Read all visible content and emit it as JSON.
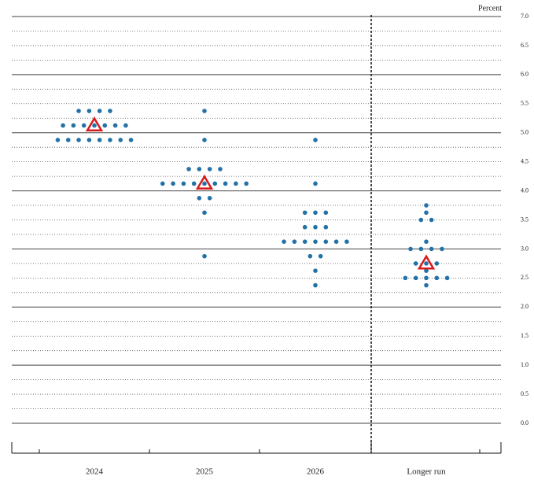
{
  "chart_data": {
    "type": "dot",
    "axis_label": "Percent",
    "categories": [
      "2024",
      "2025",
      "2026",
      "Longer run"
    ],
    "dots": [
      {
        "levels": [
          5.375,
          5.125,
          4.875
        ],
        "counts": [
          4,
          7,
          8
        ]
      },
      {
        "levels": [
          5.375,
          4.875,
          4.375,
          4.125,
          3.875,
          3.625,
          2.875
        ],
        "counts": [
          1,
          1,
          4,
          9,
          2,
          1,
          1
        ]
      },
      {
        "levels": [
          4.875,
          4.125,
          3.625,
          3.375,
          3.125,
          2.875,
          2.625,
          2.375
        ],
        "counts": [
          1,
          1,
          3,
          3,
          7,
          2,
          1,
          1
        ]
      },
      {
        "levels": [
          3.75,
          3.625,
          3.5,
          3.125,
          3.0,
          2.75,
          2.625,
          2.5,
          2.375
        ],
        "counts": [
          1,
          1,
          2,
          1,
          4,
          3,
          1,
          5,
          1
        ]
      }
    ],
    "medians": [
      5.125,
      4.125,
      null,
      2.75
    ],
    "dot_color": "#2272a8",
    "median_color": "#d7191c",
    "ylim": [
      0,
      7
    ],
    "yticks": [
      {
        "value": 0,
        "label": "0.0"
      },
      0.5,
      {
        "value": 1,
        "label": "1.0"
      },
      1.5,
      {
        "value": 2,
        "label": "2.0"
      },
      2.5,
      {
        "value": 3,
        "label": "3.0"
      },
      3.5,
      {
        "value": 4,
        "label": "4.0"
      },
      4.5,
      {
        "value": 5,
        "label": "5.0"
      },
      5.5,
      {
        "value": 6,
        "label": "6.0"
      },
      6.5,
      {
        "value": 7,
        "label": "7.0"
      }
    ],
    "grid": true
  }
}
